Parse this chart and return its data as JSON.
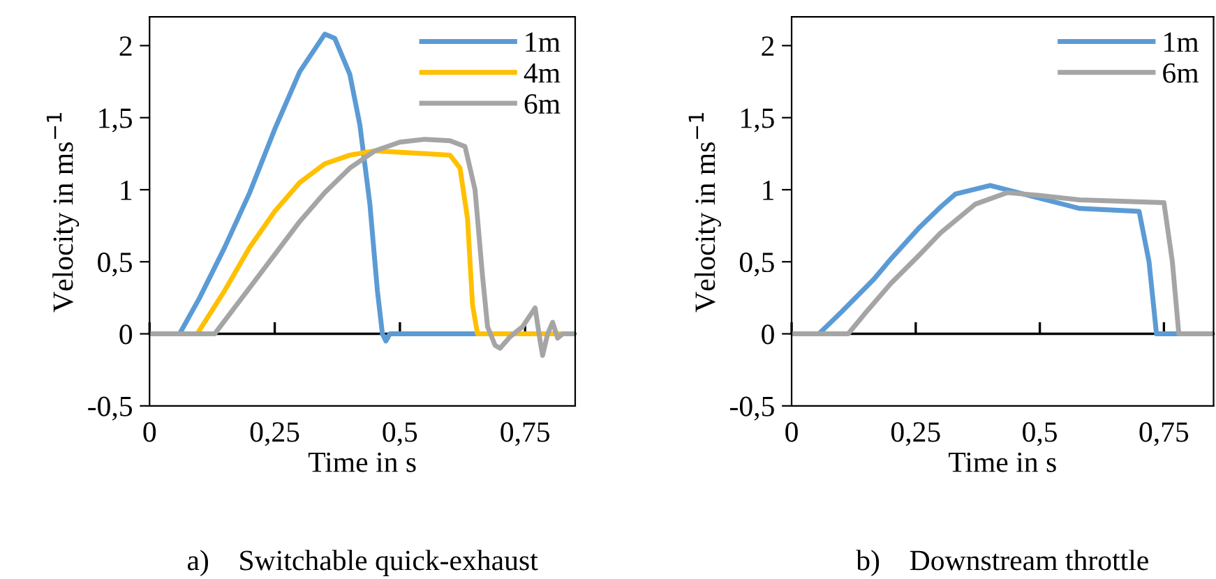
{
  "chart_data": [
    {
      "type": "line",
      "xlabel": "Time in s",
      "ylabel": "Velocity in ms$^{−1}$",
      "annotations": [
        "a)    Switchable quick-exhaust"
      ],
      "xlim": [
        0,
        0.85
      ],
      "ylim": [
        -0.5,
        2.2
      ],
      "xticks": [
        0,
        {
          "value": 0.25,
          "label": "0,25"
        },
        {
          "value": 0.5,
          "label": "0,5"
        },
        {
          "value": 0.75,
          "label": "0,75"
        }
      ],
      "yticks": [
        {
          "value": -0.5,
          "label": "-0,5"
        },
        0,
        {
          "value": 0.5,
          "label": "0,5"
        },
        1,
        {
          "value": 1.5,
          "label": "1,5"
        },
        2
      ],
      "legend": "top right",
      "series": [
        {
          "name": "1m",
          "color": "#5b9bd5",
          "x": [
            0,
            0.06,
            0.1,
            0.15,
            0.2,
            0.25,
            0.3,
            0.35,
            0.37,
            0.4,
            0.42,
            0.44,
            0.455,
            0.465,
            0.472,
            0.48,
            0.85
          ],
          "values": [
            0,
            0,
            0.25,
            0.6,
            0.98,
            1.42,
            1.82,
            2.08,
            2.05,
            1.8,
            1.45,
            0.9,
            0.3,
            0,
            -0.05,
            0,
            0
          ]
        },
        {
          "name": "4m",
          "color": "#ffc000",
          "x": [
            0,
            0.095,
            0.15,
            0.2,
            0.25,
            0.3,
            0.35,
            0.4,
            0.45,
            0.5,
            0.55,
            0.6,
            0.62,
            0.635,
            0.645,
            0.655,
            0.85
          ],
          "values": [
            0,
            0,
            0.3,
            0.6,
            0.85,
            1.05,
            1.18,
            1.24,
            1.27,
            1.26,
            1.25,
            1.24,
            1.15,
            0.8,
            0.2,
            0,
            0
          ]
        },
        {
          "name": "6m",
          "color": "#a5a5a5",
          "x": [
            0,
            0.13,
            0.2,
            0.25,
            0.3,
            0.35,
            0.4,
            0.45,
            0.5,
            0.55,
            0.6,
            0.63,
            0.65,
            0.665,
            0.675,
            0.69,
            0.7,
            0.72,
            0.745,
            0.77,
            0.78,
            0.785,
            0.795,
            0.805,
            0.815,
            0.825,
            0.85
          ],
          "values": [
            0,
            0,
            0.32,
            0.55,
            0.78,
            0.98,
            1.15,
            1.27,
            1.33,
            1.35,
            1.34,
            1.3,
            1.0,
            0.4,
            0.05,
            -0.08,
            -0.1,
            -0.02,
            0.05,
            0.18,
            -0.05,
            -0.15,
            0,
            0.08,
            -0.03,
            0,
            0
          ]
        }
      ]
    },
    {
      "type": "line",
      "xlabel": "Time in s",
      "ylabel": "Velocity in ms$^{−1}$",
      "annotations": [
        "b)    Downstream throttle"
      ],
      "xlim": [
        0,
        0.85
      ],
      "ylim": [
        -0.5,
        2.2
      ],
      "xticks": [
        0,
        {
          "value": 0.25,
          "label": "0,25"
        },
        {
          "value": 0.5,
          "label": "0,5"
        },
        {
          "value": 0.75,
          "label": "0,75"
        }
      ],
      "yticks": [
        {
          "value": -0.5,
          "label": "-0,5"
        },
        0,
        {
          "value": 0.5,
          "label": "0,5"
        },
        1,
        {
          "value": 1.5,
          "label": "1,5"
        },
        2
      ],
      "legend": "top right",
      "series": [
        {
          "name": "1m",
          "color": "#5b9bd5",
          "x": [
            0,
            0.055,
            0.1,
            0.166,
            0.2,
            0.258,
            0.3,
            0.33,
            0.4,
            0.49,
            0.58,
            0.7,
            0.72,
            0.735,
            0.85
          ],
          "values": [
            0,
            0,
            0.15,
            0.38,
            0.52,
            0.74,
            0.88,
            0.97,
            1.03,
            0.95,
            0.87,
            0.85,
            0.5,
            0,
            0
          ]
        },
        {
          "name": "6m",
          "color": "#a5a5a5",
          "x": [
            0,
            0.114,
            0.15,
            0.2,
            0.258,
            0.3,
            0.37,
            0.435,
            0.5,
            0.58,
            0.75,
            0.767,
            0.78,
            0.85
          ],
          "values": [
            0,
            0,
            0.15,
            0.35,
            0.55,
            0.7,
            0.9,
            0.98,
            0.96,
            0.93,
            0.91,
            0.5,
            0,
            0
          ]
        }
      ]
    }
  ]
}
